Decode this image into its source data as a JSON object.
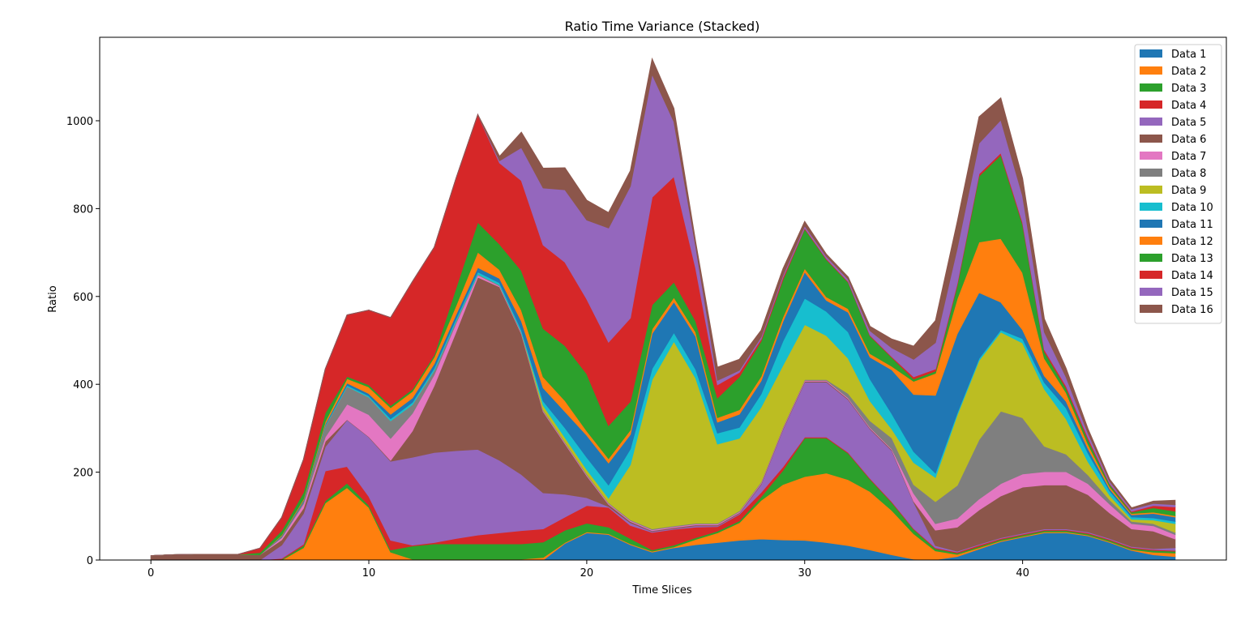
{
  "chart_data": {
    "type": "area",
    "stacked": true,
    "title": "Ratio Time Variance (Stacked)",
    "xlabel": "Time Slices",
    "ylabel": "Ratio",
    "xlim": [
      -2.35,
      49.35
    ],
    "ylim": [
      0,
      1190
    ],
    "x_ticks": [
      0,
      10,
      20,
      30,
      40
    ],
    "y_ticks": [
      0,
      200,
      400,
      600,
      800,
      1000
    ],
    "legend_position": "top-right",
    "x": [
      0,
      1,
      2,
      3,
      4,
      5,
      6,
      7,
      8,
      9,
      10,
      11,
      12,
      13,
      14,
      15,
      16,
      17,
      18,
      19,
      20,
      21,
      22,
      23,
      24,
      25,
      26,
      27,
      28,
      29,
      30,
      31,
      32,
      33,
      34,
      35,
      36,
      37,
      38,
      39,
      40,
      41,
      42,
      43,
      44,
      45,
      46,
      47
    ],
    "series": [
      {
        "name": "Data 1",
        "color": "#1f77b4",
        "values": [
          0,
          0,
          0,
          0,
          0,
          0,
          0,
          0,
          0,
          0,
          0,
          0,
          0,
          0,
          0,
          0,
          0,
          0,
          0,
          38,
          62,
          58,
          35,
          18,
          28,
          35,
          40,
          45,
          48,
          46,
          45,
          40,
          33,
          23,
          12,
          2,
          1,
          8,
          25,
          42,
          52,
          62,
          62,
          55,
          40,
          22,
          12,
          8
        ]
      },
      {
        "name": "Data 2",
        "color": "#ff7f0e",
        "values": [
          0,
          0,
          0,
          0,
          0,
          0,
          0,
          28,
          130,
          165,
          120,
          18,
          2,
          2,
          2,
          2,
          2,
          2,
          6,
          2,
          2,
          2,
          2,
          2,
          2,
          12,
          22,
          40,
          88,
          126,
          145,
          158,
          150,
          133,
          101,
          58,
          20,
          5,
          3,
          2,
          2,
          2,
          2,
          2,
          2,
          2,
          6,
          8
        ]
      },
      {
        "name": "Data 3",
        "color": "#2ca02c",
        "values": [
          0,
          0,
          0,
          0,
          0,
          0,
          2,
          5,
          5,
          10,
          5,
          5,
          30,
          35,
          35,
          35,
          35,
          35,
          35,
          28,
          20,
          15,
          12,
          3,
          4,
          4,
          4,
          4,
          8,
          32,
          88,
          80,
          60,
          28,
          18,
          10,
          5,
          3,
          3,
          3,
          3,
          3,
          3,
          3,
          3,
          3,
          4,
          4
        ]
      },
      {
        "name": "Data 4",
        "color": "#d62728",
        "values": [
          0,
          0,
          0,
          0,
          0,
          0,
          2,
          3,
          68,
          38,
          20,
          22,
          2,
          3,
          12,
          20,
          25,
          30,
          30,
          30,
          40,
          45,
          30,
          40,
          36,
          24,
          10,
          15,
          10,
          8,
          2,
          2,
          2,
          2,
          2,
          2,
          2,
          2,
          3,
          2,
          2,
          2,
          2,
          2,
          2,
          2,
          2,
          2
        ]
      },
      {
        "name": "Data 5",
        "color": "#9467bd",
        "values": [
          0,
          0,
          0,
          0,
          0,
          0,
          30,
          70,
          55,
          106,
          135,
          180,
          200,
          205,
          200,
          195,
          165,
          128,
          82,
          52,
          18,
          2,
          6,
          2,
          2,
          3,
          2,
          2,
          18,
          85,
          125,
          125,
          120,
          112,
          116,
          60,
          5,
          2,
          2,
          2,
          2,
          2,
          2,
          2,
          2,
          2,
          2,
          6
        ]
      },
      {
        "name": "Data 6",
        "color": "#8c564b",
        "values": [
          10,
          12,
          13,
          13,
          13,
          12,
          12,
          12,
          12,
          1,
          1,
          2,
          60,
          152,
          270,
          392,
          395,
          320,
          185,
          115,
          50,
          5,
          3,
          2,
          2,
          2,
          2,
          2,
          2,
          2,
          2,
          2,
          2,
          2,
          2,
          2,
          35,
          55,
          78,
          95,
          105,
          100,
          100,
          85,
          58,
          40,
          40,
          20
        ]
      },
      {
        "name": "Data 7",
        "color": "#e377c2",
        "values": [
          0,
          0,
          0,
          0,
          0,
          0,
          5,
          10,
          10,
          35,
          50,
          50,
          40,
          25,
          20,
          5,
          2,
          2,
          2,
          2,
          2,
          2,
          2,
          2,
          2,
          2,
          2,
          2,
          2,
          2,
          2,
          2,
          2,
          2,
          2,
          18,
          15,
          20,
          25,
          28,
          30,
          30,
          30,
          25,
          20,
          12,
          12,
          10
        ]
      },
      {
        "name": "Data 8",
        "color": "#7f7f7f",
        "values": [
          0,
          0,
          0,
          0,
          0,
          0,
          2,
          5,
          25,
          40,
          40,
          40,
          20,
          10,
          5,
          2,
          2,
          2,
          2,
          2,
          2,
          2,
          2,
          2,
          2,
          2,
          2,
          2,
          2,
          2,
          2,
          2,
          10,
          15,
          25,
          20,
          50,
          75,
          135,
          165,
          128,
          58,
          40,
          20,
          10,
          5,
          5,
          5
        ]
      },
      {
        "name": "Data 9",
        "color": "#bcbd22",
        "values": [
          0,
          0,
          0,
          0,
          0,
          0,
          0,
          0,
          0,
          0,
          0,
          0,
          0,
          0,
          0,
          0,
          0,
          0,
          10,
          10,
          10,
          10,
          125,
          340,
          420,
          330,
          180,
          165,
          170,
          140,
          125,
          100,
          80,
          45,
          20,
          50,
          55,
          160,
          180,
          180,
          170,
          130,
          80,
          30,
          10,
          5,
          8,
          20
        ]
      },
      {
        "name": "Data 10",
        "color": "#17becf",
        "values": [
          0,
          0,
          0,
          0,
          0,
          0,
          0,
          0,
          2,
          3,
          3,
          5,
          5,
          5,
          5,
          5,
          5,
          5,
          10,
          22,
          28,
          30,
          36,
          25,
          20,
          20,
          25,
          25,
          30,
          55,
          60,
          55,
          60,
          50,
          35,
          25,
          10,
          5,
          5,
          5,
          10,
          15,
          25,
          20,
          10,
          5,
          5,
          5
        ]
      },
      {
        "name": "Data 11",
        "color": "#1f77b4",
        "values": [
          0,
          0,
          0,
          0,
          0,
          0,
          2,
          3,
          3,
          5,
          5,
          10,
          10,
          10,
          10,
          10,
          10,
          20,
          30,
          37,
          50,
          50,
          33,
          80,
          70,
          75,
          25,
          30,
          30,
          45,
          60,
          25,
          45,
          50,
          100,
          130,
          177,
          180,
          150,
          63,
          20,
          15,
          15,
          10,
          5,
          5,
          10,
          10
        ]
      },
      {
        "name": "Data 12",
        "color": "#ff7f0e",
        "values": [
          0,
          0,
          0,
          0,
          0,
          0,
          2,
          3,
          5,
          10,
          15,
          15,
          15,
          15,
          20,
          35,
          20,
          25,
          25,
          25,
          10,
          10,
          10,
          10,
          10,
          10,
          10,
          10,
          10,
          10,
          8,
          8,
          8,
          8,
          8,
          30,
          50,
          80,
          115,
          145,
          130,
          40,
          20,
          10,
          5,
          3,
          3,
          3
        ]
      },
      {
        "name": "Data 13",
        "color": "#2ca02c",
        "values": [
          0,
          0,
          0,
          0,
          0,
          5,
          10,
          15,
          20,
          5,
          5,
          5,
          5,
          5,
          40,
          68,
          58,
          90,
          110,
          125,
          130,
          75,
          65,
          55,
          35,
          25,
          45,
          75,
          80,
          85,
          90,
          85,
          60,
          40,
          20,
          5,
          5,
          30,
          150,
          190,
          110,
          15,
          10,
          10,
          5,
          3,
          10,
          10
        ]
      },
      {
        "name": "Data 14",
        "color": "#d62728",
        "values": [
          0,
          0,
          0,
          0,
          0,
          10,
          30,
          75,
          100,
          140,
          170,
          200,
          245,
          245,
          250,
          245,
          185,
          205,
          190,
          190,
          170,
          190,
          190,
          245,
          240,
          120,
          30,
          10,
          5,
          5,
          2,
          2,
          2,
          2,
          2,
          5,
          5,
          5,
          5,
          5,
          5,
          5,
          5,
          5,
          2,
          2,
          5,
          10
        ]
      },
      {
        "name": "Data 15",
        "color": "#9467bd",
        "values": [
          0,
          0,
          0,
          0,
          0,
          0,
          0,
          0,
          0,
          0,
          0,
          0,
          0,
          0,
          0,
          0,
          5,
          75,
          130,
          165,
          180,
          260,
          300,
          280,
          125,
          50,
          10,
          5,
          5,
          5,
          5,
          5,
          5,
          10,
          20,
          40,
          60,
          80,
          70,
          75,
          60,
          40,
          20,
          10,
          5,
          5,
          5,
          5
        ]
      },
      {
        "name": "Data 16",
        "color": "#8c564b",
        "values": [
          0,
          0,
          0,
          0,
          0,
          0,
          0,
          0,
          0,
          0,
          0,
          0,
          0,
          0,
          0,
          0,
          10,
          35,
          45,
          50,
          45,
          35,
          35,
          35,
          30,
          10,
          30,
          25,
          15,
          15,
          10,
          5,
          5,
          10,
          20,
          30,
          50,
          60,
          60,
          50,
          40,
          30,
          20,
          10,
          5,
          3,
          5,
          10
        ]
      }
    ]
  }
}
